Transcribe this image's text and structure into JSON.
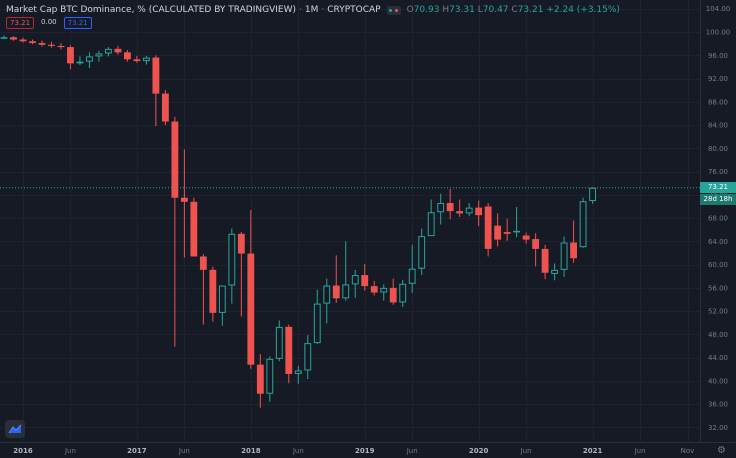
{
  "header": {
    "title": "Market Cap BTC Dominance, % (CALCULATED BY TRADINGVIEW)",
    "interval": "1M",
    "source": "CRYPTOCAP",
    "open_label": "O",
    "open": "70.93",
    "high_label": "H",
    "high": "73.31",
    "low_label": "L",
    "low": "70.47",
    "close_label": "C",
    "close": "73.21",
    "change": "+2.24 (+3.15%)"
  },
  "badges": {
    "first": "73.21",
    "second": "0.00",
    "third": "73.21"
  },
  "labels": {
    "last_price": "73.21",
    "countdown": "28d 18h"
  },
  "colors": {
    "up": "#26a69a",
    "down": "#ef5350",
    "background": "#161a25",
    "grid": "#1f2330",
    "axis_text": "#787b86"
  },
  "icons": {
    "logo": "tradingview-logo-icon",
    "settings": "gear-icon"
  },
  "chart_data": {
    "type": "candlestick",
    "title": "Market Cap BTC Dominance, % (CALCULATED BY TRADINGVIEW)",
    "y_ticks": [
      "104.00",
      "100.00",
      "96.00",
      "92.00",
      "88.00",
      "84.00",
      "80.00",
      "76.00",
      "72.00",
      "68.00",
      "64.00",
      "60.00",
      "56.00",
      "52.00",
      "48.00",
      "44.00",
      "40.00",
      "36.00",
      "32.00"
    ],
    "ylim": [
      29.5,
      105.5
    ],
    "x_ticks": [
      "2016",
      "Jun",
      "2017",
      "Jun",
      "2018",
      "Jun",
      "2019",
      "Jun",
      "2020",
      "Jun",
      "2021",
      "Jun",
      "Nov"
    ],
    "x_tick_months": [
      "2016-01",
      "2016-06",
      "2017-01",
      "2017-06",
      "2018-01",
      "2018-06",
      "2019-01",
      "2019-06",
      "2020-01",
      "2020-06",
      "2021-01",
      "2021-06",
      "2021-11"
    ],
    "xlim_months": [
      "2015-11",
      "2021-12"
    ],
    "current_price": 73.21,
    "candles": [
      {
        "m": "2015-11",
        "o": 99.0,
        "h": 99.4,
        "l": 98.8,
        "c": 99.1
      },
      {
        "m": "2015-12",
        "o": 99.1,
        "h": 99.3,
        "l": 98.5,
        "c": 98.7
      },
      {
        "m": "2016-01",
        "o": 98.7,
        "h": 99.0,
        "l": 98.2,
        "c": 98.4
      },
      {
        "m": "2016-02",
        "o": 98.4,
        "h": 98.7,
        "l": 97.9,
        "c": 98.1
      },
      {
        "m": "2016-03",
        "o": 98.1,
        "h": 98.5,
        "l": 97.5,
        "c": 97.8
      },
      {
        "m": "2016-04",
        "o": 97.8,
        "h": 98.3,
        "l": 97.3,
        "c": 97.6
      },
      {
        "m": "2016-05",
        "o": 97.6,
        "h": 98.1,
        "l": 97.0,
        "c": 97.4
      },
      {
        "m": "2016-06",
        "o": 97.4,
        "h": 97.7,
        "l": 93.6,
        "c": 94.6
      },
      {
        "m": "2016-07",
        "o": 94.6,
        "h": 95.8,
        "l": 94.3,
        "c": 94.9
      },
      {
        "m": "2016-08",
        "o": 94.9,
        "h": 96.5,
        "l": 93.8,
        "c": 95.8
      },
      {
        "m": "2016-09",
        "o": 95.8,
        "h": 96.8,
        "l": 94.9,
        "c": 96.3
      },
      {
        "m": "2016-10",
        "o": 96.3,
        "h": 97.4,
        "l": 95.8,
        "c": 97.1
      },
      {
        "m": "2016-11",
        "o": 97.1,
        "h": 97.6,
        "l": 96.1,
        "c": 96.5
      },
      {
        "m": "2016-12",
        "o": 96.5,
        "h": 96.9,
        "l": 94.9,
        "c": 95.3
      },
      {
        "m": "2017-01",
        "o": 95.3,
        "h": 95.9,
        "l": 94.7,
        "c": 95.0
      },
      {
        "m": "2017-02",
        "o": 95.0,
        "h": 95.9,
        "l": 94.4,
        "c": 95.6
      },
      {
        "m": "2017-03",
        "o": 95.6,
        "h": 96.0,
        "l": 83.8,
        "c": 89.4
      },
      {
        "m": "2017-04",
        "o": 89.4,
        "h": 90.0,
        "l": 84.0,
        "c": 84.6
      },
      {
        "m": "2017-05",
        "o": 84.6,
        "h": 85.4,
        "l": 45.9,
        "c": 71.5
      },
      {
        "m": "2017-06",
        "o": 71.5,
        "h": 79.8,
        "l": 61.2,
        "c": 70.8
      },
      {
        "m": "2017-07",
        "o": 70.8,
        "h": 71.5,
        "l": 62.0,
        "c": 61.4
      },
      {
        "m": "2017-08",
        "o": 61.4,
        "h": 61.8,
        "l": 49.7,
        "c": 59.1
      },
      {
        "m": "2017-09",
        "o": 59.1,
        "h": 59.6,
        "l": 50.2,
        "c": 51.7
      },
      {
        "m": "2017-10",
        "o": 51.7,
        "h": 56.1,
        "l": 49.5,
        "c": 56.4
      },
      {
        "m": "2017-11",
        "o": 56.4,
        "h": 66.2,
        "l": 53.3,
        "c": 65.3
      },
      {
        "m": "2017-12",
        "o": 65.3,
        "h": 65.6,
        "l": 51.1,
        "c": 61.9
      },
      {
        "m": "2018-01",
        "o": 61.9,
        "h": 69.4,
        "l": 42.1,
        "c": 42.8
      },
      {
        "m": "2018-02",
        "o": 42.8,
        "h": 44.6,
        "l": 35.4,
        "c": 37.8
      },
      {
        "m": "2018-03",
        "o": 37.8,
        "h": 44.2,
        "l": 36.4,
        "c": 43.8
      },
      {
        "m": "2018-04",
        "o": 43.8,
        "h": 50.4,
        "l": 43.4,
        "c": 49.3
      },
      {
        "m": "2018-05",
        "o": 49.3,
        "h": 49.7,
        "l": 39.6,
        "c": 41.2
      },
      {
        "m": "2018-06",
        "o": 41.2,
        "h": 42.6,
        "l": 39.5,
        "c": 41.8
      },
      {
        "m": "2018-07",
        "o": 41.8,
        "h": 47.9,
        "l": 40.3,
        "c": 46.5
      },
      {
        "m": "2018-08",
        "o": 46.5,
        "h": 55.7,
        "l": 46.4,
        "c": 53.3
      },
      {
        "m": "2018-09",
        "o": 53.3,
        "h": 57.6,
        "l": 49.9,
        "c": 56.4
      },
      {
        "m": "2018-10",
        "o": 56.4,
        "h": 61.6,
        "l": 53.4,
        "c": 54.2
      },
      {
        "m": "2018-11",
        "o": 54.2,
        "h": 64.0,
        "l": 53.8,
        "c": 56.6
      },
      {
        "m": "2018-12",
        "o": 56.6,
        "h": 59.1,
        "l": 54.3,
        "c": 58.2
      },
      {
        "m": "2019-01",
        "o": 58.2,
        "h": 60.1,
        "l": 55.5,
        "c": 56.3
      },
      {
        "m": "2019-02",
        "o": 56.3,
        "h": 57.2,
        "l": 54.7,
        "c": 55.2
      },
      {
        "m": "2019-03",
        "o": 55.2,
        "h": 56.6,
        "l": 53.8,
        "c": 56.0
      },
      {
        "m": "2019-04",
        "o": 56.0,
        "h": 57.6,
        "l": 53.1,
        "c": 53.5
      },
      {
        "m": "2019-05",
        "o": 53.5,
        "h": 57.4,
        "l": 52.7,
        "c": 56.7
      },
      {
        "m": "2019-06",
        "o": 56.7,
        "h": 63.4,
        "l": 55.1,
        "c": 59.3
      },
      {
        "m": "2019-07",
        "o": 59.3,
        "h": 66.2,
        "l": 58.2,
        "c": 64.9
      },
      {
        "m": "2019-08",
        "o": 64.9,
        "h": 71.2,
        "l": 65.1,
        "c": 69.0
      },
      {
        "m": "2019-09",
        "o": 69.0,
        "h": 72.2,
        "l": 66.9,
        "c": 70.6
      },
      {
        "m": "2019-10",
        "o": 70.6,
        "h": 73.0,
        "l": 67.8,
        "c": 69.2
      },
      {
        "m": "2019-11",
        "o": 69.2,
        "h": 71.2,
        "l": 68.2,
        "c": 68.8
      },
      {
        "m": "2019-12",
        "o": 68.8,
        "h": 70.6,
        "l": 68.3,
        "c": 69.8
      },
      {
        "m": "2020-01",
        "o": 69.8,
        "h": 71.0,
        "l": 66.6,
        "c": 68.5
      },
      {
        "m": "2020-02",
        "o": 70.0,
        "h": 70.6,
        "l": 61.4,
        "c": 62.7
      },
      {
        "m": "2020-03",
        "o": 66.7,
        "h": 68.8,
        "l": 63.1,
        "c": 64.3
      },
      {
        "m": "2020-04",
        "o": 65.6,
        "h": 67.9,
        "l": 64.1,
        "c": 65.3
      },
      {
        "m": "2020-05",
        "o": 65.6,
        "h": 69.9,
        "l": 64.7,
        "c": 65.8
      },
      {
        "m": "2020-06",
        "o": 65.0,
        "h": 65.5,
        "l": 63.6,
        "c": 64.3
      },
      {
        "m": "2020-07",
        "o": 64.4,
        "h": 65.4,
        "l": 59.7,
        "c": 62.7
      },
      {
        "m": "2020-08",
        "o": 62.7,
        "h": 63.4,
        "l": 57.5,
        "c": 58.6
      },
      {
        "m": "2020-09",
        "o": 58.4,
        "h": 60.2,
        "l": 57.3,
        "c": 59.1
      },
      {
        "m": "2020-10",
        "o": 59.1,
        "h": 64.8,
        "l": 57.9,
        "c": 63.8
      },
      {
        "m": "2020-11",
        "o": 63.8,
        "h": 67.6,
        "l": 60.3,
        "c": 61.1
      },
      {
        "m": "2020-12",
        "o": 63.0,
        "h": 71.5,
        "l": 62.9,
        "c": 70.9
      },
      {
        "m": "2021-01",
        "o": 70.93,
        "h": 73.31,
        "l": 70.47,
        "c": 73.21
      }
    ]
  }
}
